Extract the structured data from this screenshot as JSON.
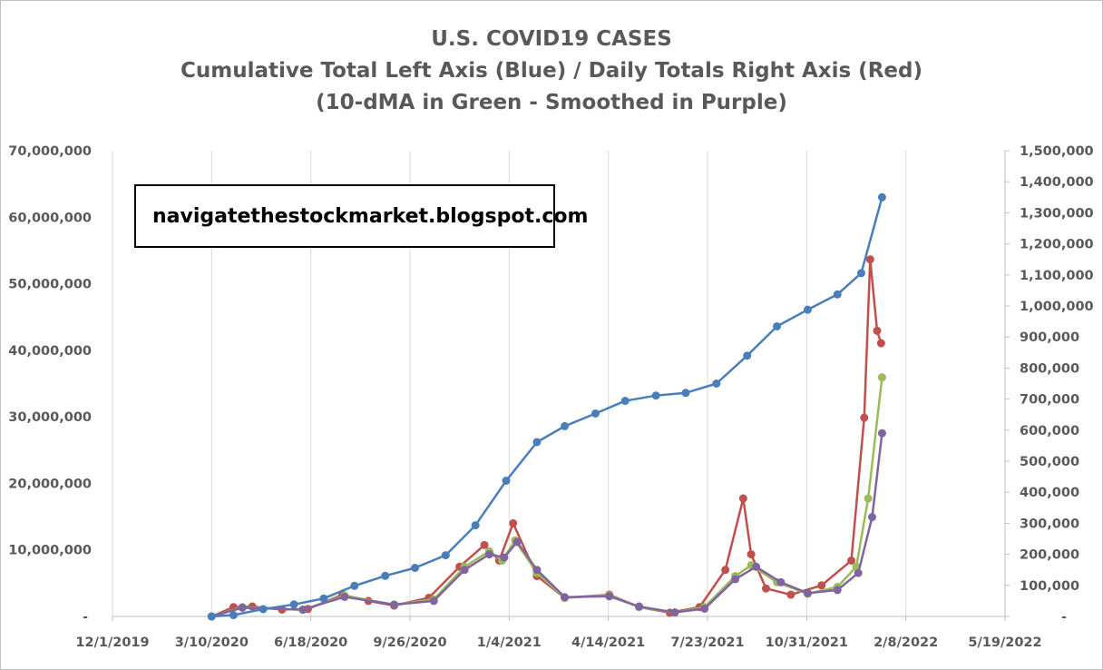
{
  "chart_data": {
    "type": "line",
    "title": "U.S. COVID19 CASES",
    "subtitle": "Cumulative Total Left Axis (Blue) / Daily Totals Right Axis (Red)",
    "subtitle2": "(10-dMA in Green - Smoothed in Purple)",
    "annotation": "navigatethestockmarket.blogspot.com",
    "x_axis": {
      "type": "date",
      "range": [
        "2019-12-01",
        "2022-05-19"
      ],
      "tick_labels": [
        "12/1/2019",
        "3/10/2020",
        "6/18/2020",
        "9/26/2020",
        "1/4/2021",
        "4/14/2021",
        "7/23/2021",
        "10/31/2021",
        "2/8/2022",
        "5/19/2022"
      ]
    },
    "y_left": {
      "range": [
        0,
        70000000
      ],
      "tick_labels": [
        "-",
        "10,000,000",
        "20,000,000",
        "30,000,000",
        "40,000,000",
        "50,000,000",
        "60,000,000",
        "70,000,000"
      ]
    },
    "y_right": {
      "range": [
        0,
        1500000
      ],
      "tick_labels": [
        "-",
        "100,000",
        "200,000",
        "300,000",
        "400,000",
        "500,000",
        "600,000",
        "700,000",
        "800,000",
        "900,000",
        "1,000,000",
        "1,100,000",
        "1,200,000",
        "1,300,000",
        "1,400,000",
        "1,500,000"
      ]
    },
    "grid": "vertical",
    "colors": {
      "cumulative": "#4a7ebb",
      "daily": "#c0504d",
      "ma10": "#9bbb59",
      "smoothed": "#8064a2",
      "grid": "#d9d9d9",
      "axis_text": "#595959"
    },
    "series": [
      {
        "axis": "left",
        "points": [
          [
            "2020-03-10",
            0
          ],
          [
            "2020-04-01",
            200000
          ],
          [
            "2020-05-01",
            1100000
          ],
          [
            "2020-06-01",
            1800000
          ],
          [
            "2020-07-01",
            2700000
          ],
          [
            "2020-08-01",
            4600000
          ],
          [
            "2020-09-01",
            6100000
          ],
          [
            "2020-10-01",
            7300000
          ],
          [
            "2020-11-01",
            9200000
          ],
          [
            "2020-12-01",
            13700000
          ],
          [
            "2021-01-01",
            20400000
          ],
          [
            "2021-02-01",
            26200000
          ],
          [
            "2021-03-01",
            28600000
          ],
          [
            "2021-04-01",
            30500000
          ],
          [
            "2021-05-01",
            32400000
          ],
          [
            "2021-06-01",
            33200000
          ],
          [
            "2021-07-01",
            33600000
          ],
          [
            "2021-08-01",
            35000000
          ],
          [
            "2021-09-01",
            39200000
          ],
          [
            "2021-10-01",
            43600000
          ],
          [
            "2021-11-01",
            46100000
          ],
          [
            "2021-12-01",
            48400000
          ],
          [
            "2021-12-25",
            51600000
          ],
          [
            "2022-01-15",
            63000000
          ]
        ]
      },
      {
        "axis": "right",
        "points": [
          [
            "2020-03-10",
            0
          ],
          [
            "2020-04-01",
            30000
          ],
          [
            "2020-04-20",
            32000
          ],
          [
            "2020-05-20",
            22000
          ],
          [
            "2020-06-15",
            24000
          ],
          [
            "2020-07-20",
            70000
          ],
          [
            "2020-08-15",
            50000
          ],
          [
            "2020-09-10",
            35000
          ],
          [
            "2020-10-15",
            60000
          ],
          [
            "2020-11-15",
            160000
          ],
          [
            "2020-12-10",
            230000
          ],
          [
            "2020-12-25",
            180000
          ],
          [
            "2021-01-08",
            300000
          ],
          [
            "2021-02-01",
            130000
          ],
          [
            "2021-03-01",
            60000
          ],
          [
            "2021-04-15",
            70000
          ],
          [
            "2021-05-15",
            30000
          ],
          [
            "2021-06-15",
            12000
          ],
          [
            "2021-07-15",
            30000
          ],
          [
            "2021-08-10",
            150000
          ],
          [
            "2021-08-28",
            380000
          ],
          [
            "2021-09-05",
            200000
          ],
          [
            "2021-09-20",
            90000
          ],
          [
            "2021-10-15",
            70000
          ],
          [
            "2021-11-15",
            100000
          ],
          [
            "2021-12-15",
            180000
          ],
          [
            "2021-12-28",
            640000
          ],
          [
            "2022-01-03",
            1150000
          ],
          [
            "2022-01-10",
            920000
          ],
          [
            "2022-01-14",
            880000
          ]
        ]
      },
      {
        "axis": "right",
        "points": [
          [
            "2020-03-10",
            0
          ],
          [
            "2020-04-10",
            30000
          ],
          [
            "2020-06-10",
            21000
          ],
          [
            "2020-07-22",
            67000
          ],
          [
            "2020-09-10",
            38000
          ],
          [
            "2020-10-20",
            55000
          ],
          [
            "2020-11-20",
            160000
          ],
          [
            "2020-12-15",
            210000
          ],
          [
            "2020-12-28",
            180000
          ],
          [
            "2021-01-10",
            245000
          ],
          [
            "2021-02-01",
            140000
          ],
          [
            "2021-03-01",
            60000
          ],
          [
            "2021-04-15",
            68000
          ],
          [
            "2021-05-15",
            30000
          ],
          [
            "2021-06-20",
            12000
          ],
          [
            "2021-07-20",
            30000
          ],
          [
            "2021-08-20",
            130000
          ],
          [
            "2021-09-05",
            165000
          ],
          [
            "2021-10-01",
            110000
          ],
          [
            "2021-11-01",
            73000
          ],
          [
            "2021-12-01",
            95000
          ],
          [
            "2021-12-20",
            160000
          ],
          [
            "2022-01-01",
            380000
          ],
          [
            "2022-01-15",
            770000
          ]
        ]
      },
      {
        "axis": "right",
        "points": [
          [
            "2020-03-10",
            0
          ],
          [
            "2020-04-10",
            28000
          ],
          [
            "2020-06-10",
            22000
          ],
          [
            "2020-07-22",
            63000
          ],
          [
            "2020-09-10",
            38000
          ],
          [
            "2020-10-20",
            50000
          ],
          [
            "2020-11-20",
            150000
          ],
          [
            "2020-12-15",
            200000
          ],
          [
            "2020-12-30",
            190000
          ],
          [
            "2021-01-12",
            240000
          ],
          [
            "2021-02-01",
            150000
          ],
          [
            "2021-03-01",
            62000
          ],
          [
            "2021-04-15",
            65000
          ],
          [
            "2021-05-15",
            32000
          ],
          [
            "2021-06-20",
            13000
          ],
          [
            "2021-07-20",
            25000
          ],
          [
            "2021-08-20",
            120000
          ],
          [
            "2021-09-10",
            160000
          ],
          [
            "2021-10-05",
            110000
          ],
          [
            "2021-11-01",
            75000
          ],
          [
            "2021-12-01",
            85000
          ],
          [
            "2021-12-22",
            140000
          ],
          [
            "2022-01-05",
            320000
          ],
          [
            "2022-01-15",
            590000
          ]
        ]
      }
    ]
  }
}
